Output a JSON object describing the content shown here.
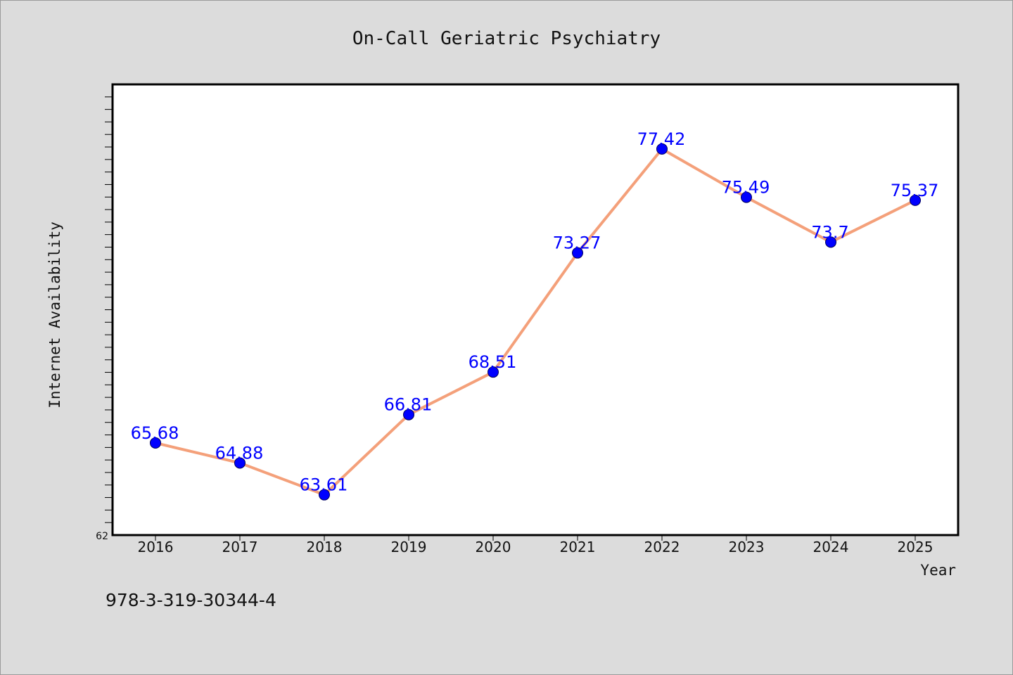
{
  "chart_data": {
    "type": "line",
    "title": "On-Call Geriatric Psychiatry",
    "xlabel": "Year",
    "ylabel": "Internet Availability",
    "categories": [
      "2016",
      "2017",
      "2018",
      "2019",
      "2020",
      "2021",
      "2022",
      "2023",
      "2024",
      "2025"
    ],
    "series": [
      {
        "values": [
          65.68,
          64.88,
          63.61,
          66.81,
          68.51,
          73.27,
          77.42,
          75.49,
          73.7,
          75.37
        ],
        "labels": [
          "65.68",
          "64.88",
          "63.61",
          "66.81",
          "68.51",
          "73.27",
          "77.42",
          "75.49",
          "73.7",
          "75.37"
        ],
        "line_color": "#f4a07a",
        "marker_color": "#0000ff"
      }
    ],
    "ylim": [
      62,
      80
    ],
    "ytick_labels": [
      "62"
    ],
    "legend": "none",
    "grid": false
  },
  "footer": {
    "isbn": "978-3-319-30344-4"
  }
}
